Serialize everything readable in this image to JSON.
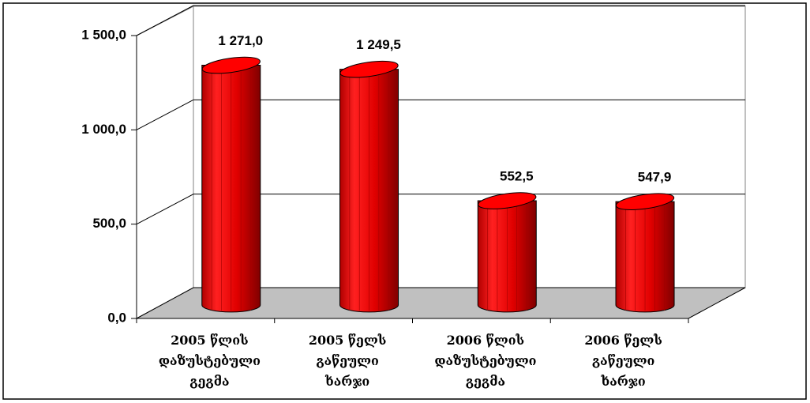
{
  "chart_data": {
    "type": "bar",
    "categories": [
      "2005 წლის\nდაზუსტებული\nგეგმა",
      "2005 წელს\nგაწეული\nხარჯი",
      "2006 წლის\nდაზუსტებული\nგეგმა",
      "2006 წელს\nგაწეული\nხარჯი"
    ],
    "values": [
      1271.0,
      1249.5,
      552.5,
      547.9
    ],
    "value_labels": [
      "1 271,0",
      "1 249,5",
      "552,5",
      "547,9"
    ],
    "color": "#ff0000",
    "ylim": [
      0,
      1500
    ],
    "yticks": [
      {
        "value": 0,
        "label": "0,0"
      },
      {
        "value": 500,
        "label": "500,0"
      },
      {
        "value": 1000,
        "label": "1 000,0"
      },
      {
        "value": 1500,
        "label": "1 500,0"
      }
    ],
    "grid": true
  }
}
